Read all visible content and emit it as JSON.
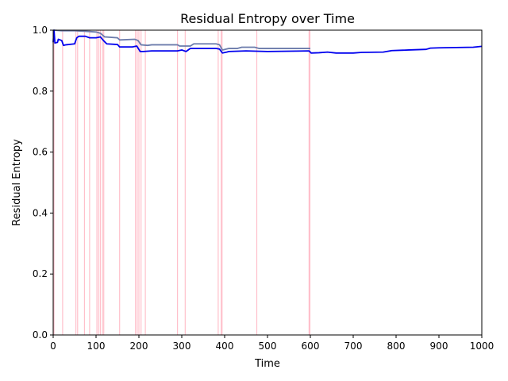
{
  "chart_data": {
    "type": "line",
    "title": "Residual Entropy over Time",
    "xlabel": "Time",
    "ylabel": "Residual Entropy",
    "xlim": [
      0,
      1000
    ],
    "ylim": [
      0,
      1.0
    ],
    "xticks": [
      0,
      100,
      200,
      300,
      400,
      500,
      600,
      700,
      800,
      900,
      1000
    ],
    "xtick_labels": [
      "0",
      "100",
      "200",
      "300",
      "400",
      "500",
      "600",
      "700",
      "800",
      "900",
      "1000"
    ],
    "yticks": [
      0.0,
      0.2,
      0.4,
      0.6,
      0.8,
      1.0
    ],
    "ytick_labels": [
      "0.0",
      "0.2",
      "0.4",
      "0.6",
      "0.8",
      "1.0"
    ],
    "grid": false,
    "event_markers": {
      "color": "#ffc0cb",
      "x": [
        2,
        22,
        53,
        57,
        73,
        85,
        102,
        106,
        110,
        115,
        118,
        155,
        192,
        196,
        200,
        205,
        215,
        290,
        308,
        385,
        392,
        394,
        475,
        597,
        599
      ]
    },
    "series": [
      {
        "color": "#6b7bab",
        "points": [
          [
            0,
            1.0
          ],
          [
            20,
            0.998
          ],
          [
            50,
            0.998
          ],
          [
            80,
            0.996
          ],
          [
            100,
            0.994
          ],
          [
            110,
            0.99
          ],
          [
            120,
            0.978
          ],
          [
            150,
            0.975
          ],
          [
            155,
            0.968
          ],
          [
            190,
            0.97
          ],
          [
            198,
            0.966
          ],
          [
            205,
            0.952
          ],
          [
            220,
            0.95
          ],
          [
            230,
            0.952
          ],
          [
            290,
            0.952
          ],
          [
            295,
            0.948
          ],
          [
            320,
            0.948
          ],
          [
            328,
            0.955
          ],
          [
            380,
            0.955
          ],
          [
            388,
            0.952
          ],
          [
            395,
            0.935
          ],
          [
            410,
            0.94
          ],
          [
            430,
            0.94
          ],
          [
            440,
            0.944
          ],
          [
            470,
            0.944
          ],
          [
            480,
            0.94
          ],
          [
            520,
            0.94
          ],
          [
            600,
            0.94
          ]
        ]
      },
      {
        "color": "#0000ee",
        "points": [
          [
            0,
            0.96
          ],
          [
            2,
            1.0
          ],
          [
            4,
            0.958
          ],
          [
            10,
            0.96
          ],
          [
            12,
            0.97
          ],
          [
            20,
            0.966
          ],
          [
            24,
            0.95
          ],
          [
            30,
            0.952
          ],
          [
            50,
            0.955
          ],
          [
            55,
            0.975
          ],
          [
            60,
            0.98
          ],
          [
            75,
            0.98
          ],
          [
            85,
            0.975
          ],
          [
            100,
            0.975
          ],
          [
            110,
            0.978
          ],
          [
            118,
            0.965
          ],
          [
            125,
            0.955
          ],
          [
            150,
            0.953
          ],
          [
            155,
            0.945
          ],
          [
            185,
            0.945
          ],
          [
            195,
            0.948
          ],
          [
            203,
            0.93
          ],
          [
            210,
            0.93
          ],
          [
            230,
            0.932
          ],
          [
            290,
            0.932
          ],
          [
            300,
            0.935
          ],
          [
            310,
            0.93
          ],
          [
            320,
            0.94
          ],
          [
            380,
            0.94
          ],
          [
            388,
            0.938
          ],
          [
            395,
            0.925
          ],
          [
            405,
            0.928
          ],
          [
            410,
            0.93
          ],
          [
            450,
            0.932
          ],
          [
            500,
            0.93
          ],
          [
            597,
            0.932
          ],
          [
            602,
            0.925
          ],
          [
            620,
            0.926
          ],
          [
            640,
            0.928
          ],
          [
            660,
            0.925
          ],
          [
            700,
            0.925
          ],
          [
            720,
            0.927
          ],
          [
            770,
            0.928
          ],
          [
            790,
            0.933
          ],
          [
            830,
            0.935
          ],
          [
            870,
            0.937
          ],
          [
            880,
            0.941
          ],
          [
            900,
            0.942
          ],
          [
            980,
            0.944
          ],
          [
            1000,
            0.947
          ]
        ]
      }
    ]
  }
}
